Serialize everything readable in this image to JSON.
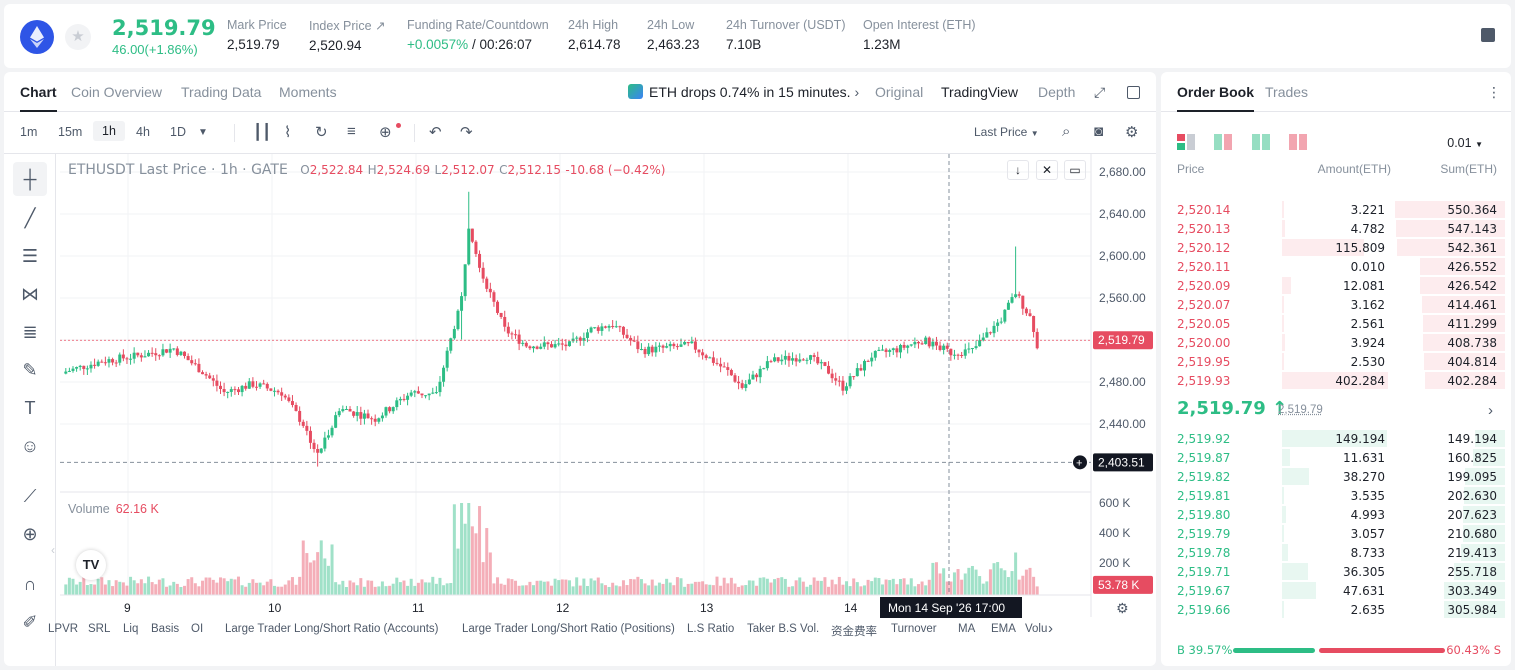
{
  "ticker": {
    "last_price": "2,519.79",
    "change": "46.00(+1.86%)",
    "stats": [
      {
        "label": "Mark Price",
        "value": "2,519.79"
      },
      {
        "label": "Index Price ↗",
        "value": "2,520.94"
      },
      {
        "label": "Funding Rate/Countdown",
        "value_green": "+0.0057%",
        "value": " / 00:26:07"
      },
      {
        "label": "24h High",
        "value": "2,614.78"
      },
      {
        "label": "24h Low",
        "value": "2,463.23"
      },
      {
        "label": "24h Turnover (USDT)",
        "value": "7.10B"
      },
      {
        "label": "Open Interest (ETH)",
        "value": "1.23M"
      }
    ]
  },
  "chart_tabs": [
    "Chart",
    "Coin Overview",
    "Trading Data",
    "Moments"
  ],
  "news": "ETH drops 0.74% in 15 minutes.",
  "view_tabs": [
    "Original",
    "TradingView",
    "Depth"
  ],
  "timeframes": [
    "1m",
    "15m",
    "1h",
    "4h",
    "1D"
  ],
  "price_type": "Last Price",
  "legend": {
    "symbol": "ETHUSDT Last Price · 1h · GATE",
    "o_label": "O",
    "o": "2,522.84",
    "h_label": "H",
    "h": "2,524.69",
    "l_label": "L",
    "l": "2,512.07",
    "c_label": "C",
    "c": "2,512.15",
    "chg": "-10.68 (−0.42%)"
  },
  "volume_legend": {
    "label": "Volume",
    "value": "62.16 K"
  },
  "price_axis": [
    "2,680.00",
    "2,640.00",
    "2,600.00",
    "2,560.00",
    "2,520.00",
    "2,480.00",
    "2,440.00"
  ],
  "current_price_tag": "2,519.79",
  "crosshair_price_tag": "2,403.51",
  "volume_axis": [
    "600 K",
    "400 K",
    "200 K"
  ],
  "volume_tag": "53.78 K",
  "time_axis": [
    "9",
    "10",
    "11",
    "12",
    "13",
    "14"
  ],
  "crosshair_time": "Mon 14 Sep '26   17:00",
  "indicators": [
    "LPVR",
    "SRL",
    "Liq",
    "Basis",
    "OI",
    "Large Trader Long/Short Ratio (Accounts)",
    "Large Trader Long/Short Ratio (Positions)",
    "L.S Ratio",
    "Taker B.S Vol.",
    "资金费率",
    "Turnover",
    "MA",
    "EMA",
    "Volu"
  ],
  "orderbook": {
    "tabs": [
      "Order Book",
      "Trades"
    ],
    "tick": "0.01",
    "headers": [
      "Price",
      "Amount(ETH)",
      "Sum(ETH)"
    ],
    "asks": [
      {
        "price": "2,520.14",
        "amount": "3.221",
        "sum": "550.364"
      },
      {
        "price": "2,520.13",
        "amount": "4.782",
        "sum": "547.143"
      },
      {
        "price": "2,520.12",
        "amount": "115.809",
        "sum": "542.361"
      },
      {
        "price": "2,520.11",
        "amount": "0.010",
        "sum": "426.552"
      },
      {
        "price": "2,520.09",
        "amount": "12.081",
        "sum": "426.542"
      },
      {
        "price": "2,520.07",
        "amount": "3.162",
        "sum": "414.461"
      },
      {
        "price": "2,520.05",
        "amount": "2.561",
        "sum": "411.299"
      },
      {
        "price": "2,520.00",
        "amount": "3.924",
        "sum": "408.738"
      },
      {
        "price": "2,519.95",
        "amount": "2.530",
        "sum": "404.814"
      },
      {
        "price": "2,519.93",
        "amount": "402.284",
        "sum": "402.284"
      }
    ],
    "mid_price": "2,519.79 ↑",
    "mid_mark": "2,519.79",
    "bids": [
      {
        "price": "2,519.92",
        "amount": "149.194",
        "sum": "149.194"
      },
      {
        "price": "2,519.87",
        "amount": "11.631",
        "sum": "160.825"
      },
      {
        "price": "2,519.82",
        "amount": "38.270",
        "sum": "199.095"
      },
      {
        "price": "2,519.81",
        "amount": "3.535",
        "sum": "202.630"
      },
      {
        "price": "2,519.80",
        "amount": "4.993",
        "sum": "207.623"
      },
      {
        "price": "2,519.79",
        "amount": "3.057",
        "sum": "210.680"
      },
      {
        "price": "2,519.78",
        "amount": "8.733",
        "sum": "219.413"
      },
      {
        "price": "2,519.71",
        "amount": "36.305",
        "sum": "255.718"
      },
      {
        "price": "2,519.67",
        "amount": "47.631",
        "sum": "303.349"
      },
      {
        "price": "2,519.66",
        "amount": "2.635",
        "sum": "305.984"
      }
    ],
    "buy_ratio": "B  39.57%",
    "sell_ratio": "60.43%  S",
    "buy_ratio_value": 0.3957
  },
  "colors": {
    "up": "#2dbd85",
    "down": "#e64c61"
  }
}
